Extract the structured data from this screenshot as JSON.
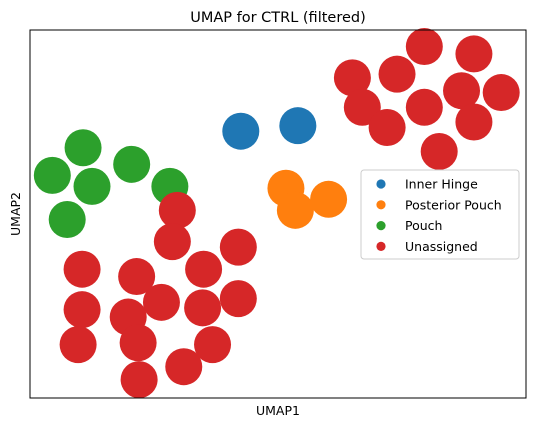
{
  "chart_data": {
    "type": "scatter",
    "title": "UMAP for CTRL (filtered)",
    "xlabel": "UMAP1",
    "ylabel": "UMAP2",
    "ticks": false,
    "grid": false,
    "legend_position": "center-right",
    "series": [
      {
        "name": "Inner Hinge",
        "color": "#1f77b4",
        "points": [
          {
            "x": 0.425,
            "y": 0.725
          },
          {
            "x": 0.54,
            "y": 0.74
          }
        ]
      },
      {
        "name": "Posterior Pouch",
        "color": "#ff7f0e",
        "points": [
          {
            "x": 0.516,
            "y": 0.57
          },
          {
            "x": 0.535,
            "y": 0.51
          },
          {
            "x": 0.602,
            "y": 0.54
          }
        ]
      },
      {
        "name": "Pouch",
        "color": "#2ca02c",
        "points": [
          {
            "x": 0.107,
            "y": 0.68
          },
          {
            "x": 0.205,
            "y": 0.635
          },
          {
            "x": 0.045,
            "y": 0.605
          },
          {
            "x": 0.125,
            "y": 0.575
          },
          {
            "x": 0.282,
            "y": 0.575
          },
          {
            "x": 0.075,
            "y": 0.485
          }
        ]
      },
      {
        "name": "Unassigned",
        "color": "#d62728",
        "points": [
          {
            "x": 0.795,
            "y": 0.955
          },
          {
            "x": 0.895,
            "y": 0.935
          },
          {
            "x": 0.65,
            "y": 0.87
          },
          {
            "x": 0.74,
            "y": 0.88
          },
          {
            "x": 0.87,
            "y": 0.835
          },
          {
            "x": 0.95,
            "y": 0.83
          },
          {
            "x": 0.67,
            "y": 0.79
          },
          {
            "x": 0.795,
            "y": 0.79
          },
          {
            "x": 0.72,
            "y": 0.735
          },
          {
            "x": 0.895,
            "y": 0.75
          },
          {
            "x": 0.825,
            "y": 0.67
          },
          {
            "x": 0.297,
            "y": 0.51
          },
          {
            "x": 0.287,
            "y": 0.425
          },
          {
            "x": 0.42,
            "y": 0.41
          },
          {
            "x": 0.105,
            "y": 0.35
          },
          {
            "x": 0.215,
            "y": 0.33
          },
          {
            "x": 0.35,
            "y": 0.35
          },
          {
            "x": 0.265,
            "y": 0.26
          },
          {
            "x": 0.105,
            "y": 0.24
          },
          {
            "x": 0.198,
            "y": 0.22
          },
          {
            "x": 0.348,
            "y": 0.245
          },
          {
            "x": 0.42,
            "y": 0.27
          },
          {
            "x": 0.218,
            "y": 0.15
          },
          {
            "x": 0.097,
            "y": 0.145
          },
          {
            "x": 0.368,
            "y": 0.145
          },
          {
            "x": 0.31,
            "y": 0.085
          },
          {
            "x": 0.22,
            "y": 0.05
          }
        ]
      }
    ]
  }
}
